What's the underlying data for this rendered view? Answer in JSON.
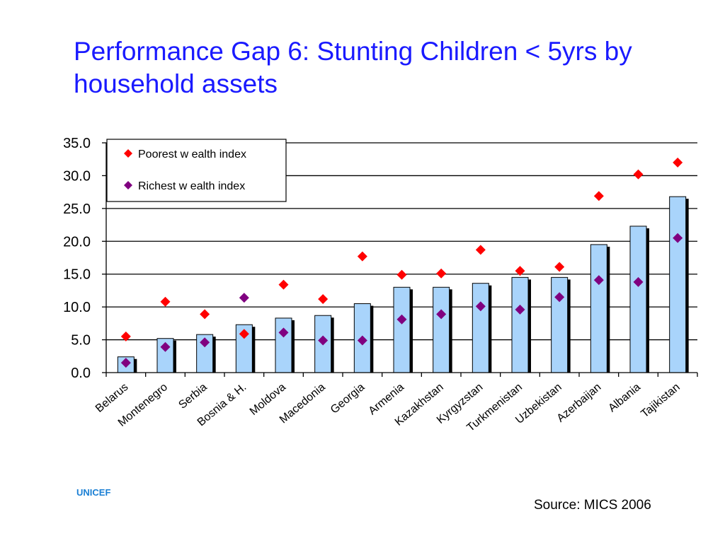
{
  "slide": {
    "title": "Performance Gap 6:  Stunting Children < 5yrs  by household assets",
    "org": "UNICEF",
    "source": "Source: MICS 2006"
  },
  "colors": {
    "title": "#1a1aff",
    "bar_fill": "#a9d4fb",
    "bar_shadow": "#000000",
    "poorest": "#ff0000",
    "richest": "#800080",
    "org": "#1a7fd4"
  },
  "chart_data": {
    "type": "bar",
    "categories": [
      "Belarus",
      "Montenegro",
      "Serbia",
      "Bosnia & H.",
      "Moldova",
      "Macedonia",
      "Georgia",
      "Armenia",
      "Kazakhstan",
      "Kyrgyzstan",
      "Turkmenistan",
      "Uzbekistan",
      "Azerbaijan",
      "Albania",
      "Tajikistan"
    ],
    "series": [
      {
        "kind": "bar",
        "values": [
          2.4,
          5.2,
          5.8,
          7.3,
          8.3,
          8.7,
          10.5,
          13.0,
          13.0,
          13.6,
          14.5,
          14.5,
          19.5,
          22.3,
          26.8
        ]
      },
      {
        "kind": "marker",
        "name": "Poorest w ealth index",
        "values": [
          5.5,
          10.8,
          8.9,
          5.9,
          13.4,
          11.2,
          17.7,
          14.9,
          15.1,
          18.7,
          15.5,
          16.1,
          26.9,
          30.2,
          32.0
        ]
      },
      {
        "kind": "marker",
        "name": "Richest w ealth index",
        "values": [
          1.5,
          3.9,
          4.6,
          11.4,
          6.1,
          4.9,
          4.9,
          8.1,
          8.9,
          10.1,
          9.6,
          11.5,
          14.1,
          13.8,
          20.5
        ]
      }
    ],
    "yticks": [
      "0.0",
      "5.0",
      "10.0",
      "15.0",
      "20.0",
      "25.0",
      "30.0",
      "35.0"
    ],
    "ylim": [
      0,
      35
    ],
    "grid": true,
    "legend": "top-left"
  }
}
